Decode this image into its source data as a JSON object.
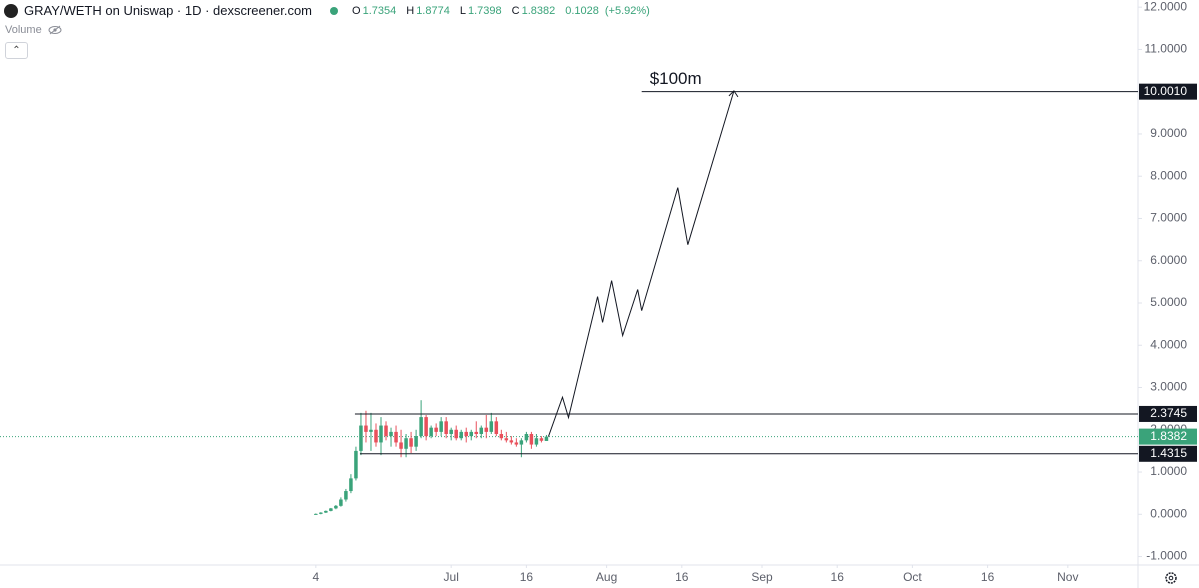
{
  "header": {
    "title": "GRAY/WETH on Uniswap · 1D · dexscreener.com",
    "ohlc": [
      {
        "label": "O",
        "value": 1.7354
      },
      {
        "label": "H",
        "value": 1.8774
      },
      {
        "label": "L",
        "value": 1.7398
      },
      {
        "label": "C",
        "value": 1.8382
      }
    ],
    "change": 0.1028,
    "change_pct": "(+5.92%)",
    "volume_label": "Volume"
  },
  "chart_data": {
    "type": "candlestick",
    "x": [
      0,
      1,
      2,
      3,
      4,
      5,
      6,
      7,
      8,
      9,
      10,
      11,
      12,
      13,
      14,
      15,
      16,
      17,
      18,
      19,
      20,
      21,
      22,
      23,
      24,
      25,
      26,
      27,
      28,
      29,
      30,
      31,
      32,
      33,
      34,
      35,
      36,
      37,
      38,
      39,
      40,
      41,
      42,
      43,
      44,
      45,
      46
    ],
    "open": [
      0,
      0.01,
      0.04,
      0.08,
      0.14,
      0.2,
      0.35,
      0.55,
      0.85,
      1.5,
      2.1,
      1.95,
      2.0,
      1.7,
      2.1,
      1.85,
      1.95,
      1.7,
      1.55,
      1.8,
      1.6,
      1.85,
      2.3,
      1.85,
      2.05,
      1.95,
      2.2,
      1.9,
      2.0,
      1.8,
      1.95,
      1.85,
      1.95,
      1.9,
      2.05,
      1.95,
      2.2,
      1.9,
      1.8,
      1.75,
      1.7,
      1.65,
      1.75,
      1.9,
      1.65,
      1.8,
      1.7354
    ],
    "high": [
      0.02,
      0.05,
      0.09,
      0.15,
      0.22,
      0.4,
      0.6,
      0.95,
      1.6,
      2.4,
      2.45,
      2.4,
      2.15,
      2.3,
      2.2,
      2.05,
      2.1,
      2.0,
      1.9,
      1.95,
      2.0,
      2.7,
      2.35,
      2.1,
      2.15,
      2.3,
      2.3,
      2.05,
      2.1,
      2.0,
      2.05,
      2.0,
      2.2,
      2.1,
      2.35,
      2.4,
      2.3,
      2.0,
      1.95,
      1.85,
      1.8,
      1.8,
      1.95,
      1.95,
      1.9,
      1.85,
      1.8774
    ],
    "low": [
      -0.01,
      0,
      0.03,
      0.07,
      0.12,
      0.18,
      0.3,
      0.5,
      0.8,
      1.4,
      1.7,
      1.5,
      1.6,
      1.4,
      1.75,
      1.6,
      1.6,
      1.35,
      1.35,
      1.45,
      1.5,
      1.8,
      1.75,
      1.8,
      1.85,
      1.85,
      1.8,
      1.75,
      1.75,
      1.75,
      1.7,
      1.75,
      1.8,
      1.8,
      1.8,
      1.9,
      1.85,
      1.75,
      1.7,
      1.65,
      1.6,
      1.35,
      1.7,
      1.55,
      1.6,
      1.7,
      1.7398
    ],
    "close": [
      0.01,
      0.04,
      0.08,
      0.14,
      0.2,
      0.35,
      0.55,
      0.85,
      1.5,
      2.1,
      1.95,
      2.0,
      1.7,
      2.1,
      1.85,
      1.95,
      1.7,
      1.55,
      1.8,
      1.6,
      1.85,
      2.3,
      1.85,
      2.05,
      1.95,
      2.2,
      1.9,
      2.0,
      1.8,
      1.95,
      1.85,
      1.95,
      1.9,
      2.05,
      1.95,
      2.2,
      1.9,
      1.8,
      1.75,
      1.7,
      1.65,
      1.75,
      1.9,
      1.65,
      1.8,
      1.74,
      1.8382
    ],
    "up_color": "#3aa37a",
    "down_color": "#e8505b",
    "xlim": [
      -63,
      164
    ],
    "xticks": [
      {
        "value": 0,
        "label": "4"
      },
      {
        "value": 27,
        "label": "Jul"
      },
      {
        "value": 42,
        "label": "16"
      },
      {
        "value": 58,
        "label": "Aug"
      },
      {
        "value": 73,
        "label": "16"
      },
      {
        "value": 89,
        "label": "Sep"
      },
      {
        "value": 104,
        "label": "16"
      },
      {
        "value": 119,
        "label": "Oct"
      },
      {
        "value": 134,
        "label": "16"
      },
      {
        "value": 150,
        "label": "Nov"
      }
    ],
    "ylim": [
      -1.2,
      12.17
    ],
    "yticks": [
      {
        "value": -1,
        "label": "-1.0000"
      },
      {
        "value": 0,
        "label": "0.0000"
      },
      {
        "value": 1,
        "label": "1.0000"
      },
      {
        "value": 2,
        "label": "2.0000"
      },
      {
        "value": 3,
        "label": "3.0000"
      },
      {
        "value": 4,
        "label": "4.0000"
      },
      {
        "value": 5,
        "label": "5.0000"
      },
      {
        "value": 6,
        "label": "6.0000"
      },
      {
        "value": 7,
        "label": "7.0000"
      },
      {
        "value": 8,
        "label": "8.0000"
      },
      {
        "value": 9,
        "label": "9.0000"
      },
      {
        "value": 10,
        "label": "10.0000"
      },
      {
        "value": 11,
        "label": "11.0000"
      },
      {
        "value": 12,
        "label": "12.0000"
      }
    ],
    "last_price": 1.8382,
    "hlines": [
      {
        "value": 10.001,
        "label": "10.0010",
        "start": 65
      },
      {
        "value": 2.3745,
        "start": 7.8
      },
      {
        "value": 1.4315,
        "start": 8.8
      }
    ],
    "projection": {
      "x": [
        46.4,
        49.2,
        50.4,
        56.2,
        57.2,
        59,
        61.2,
        64.2,
        65,
        72.2,
        74.2,
        83.4
      ],
      "values": [
        1.84,
        2.77,
        2.29,
        5.15,
        4.54,
        5.53,
        4.23,
        5.32,
        4.82,
        7.73,
        6.38,
        10.02
      ]
    },
    "annotation": "$100m"
  }
}
